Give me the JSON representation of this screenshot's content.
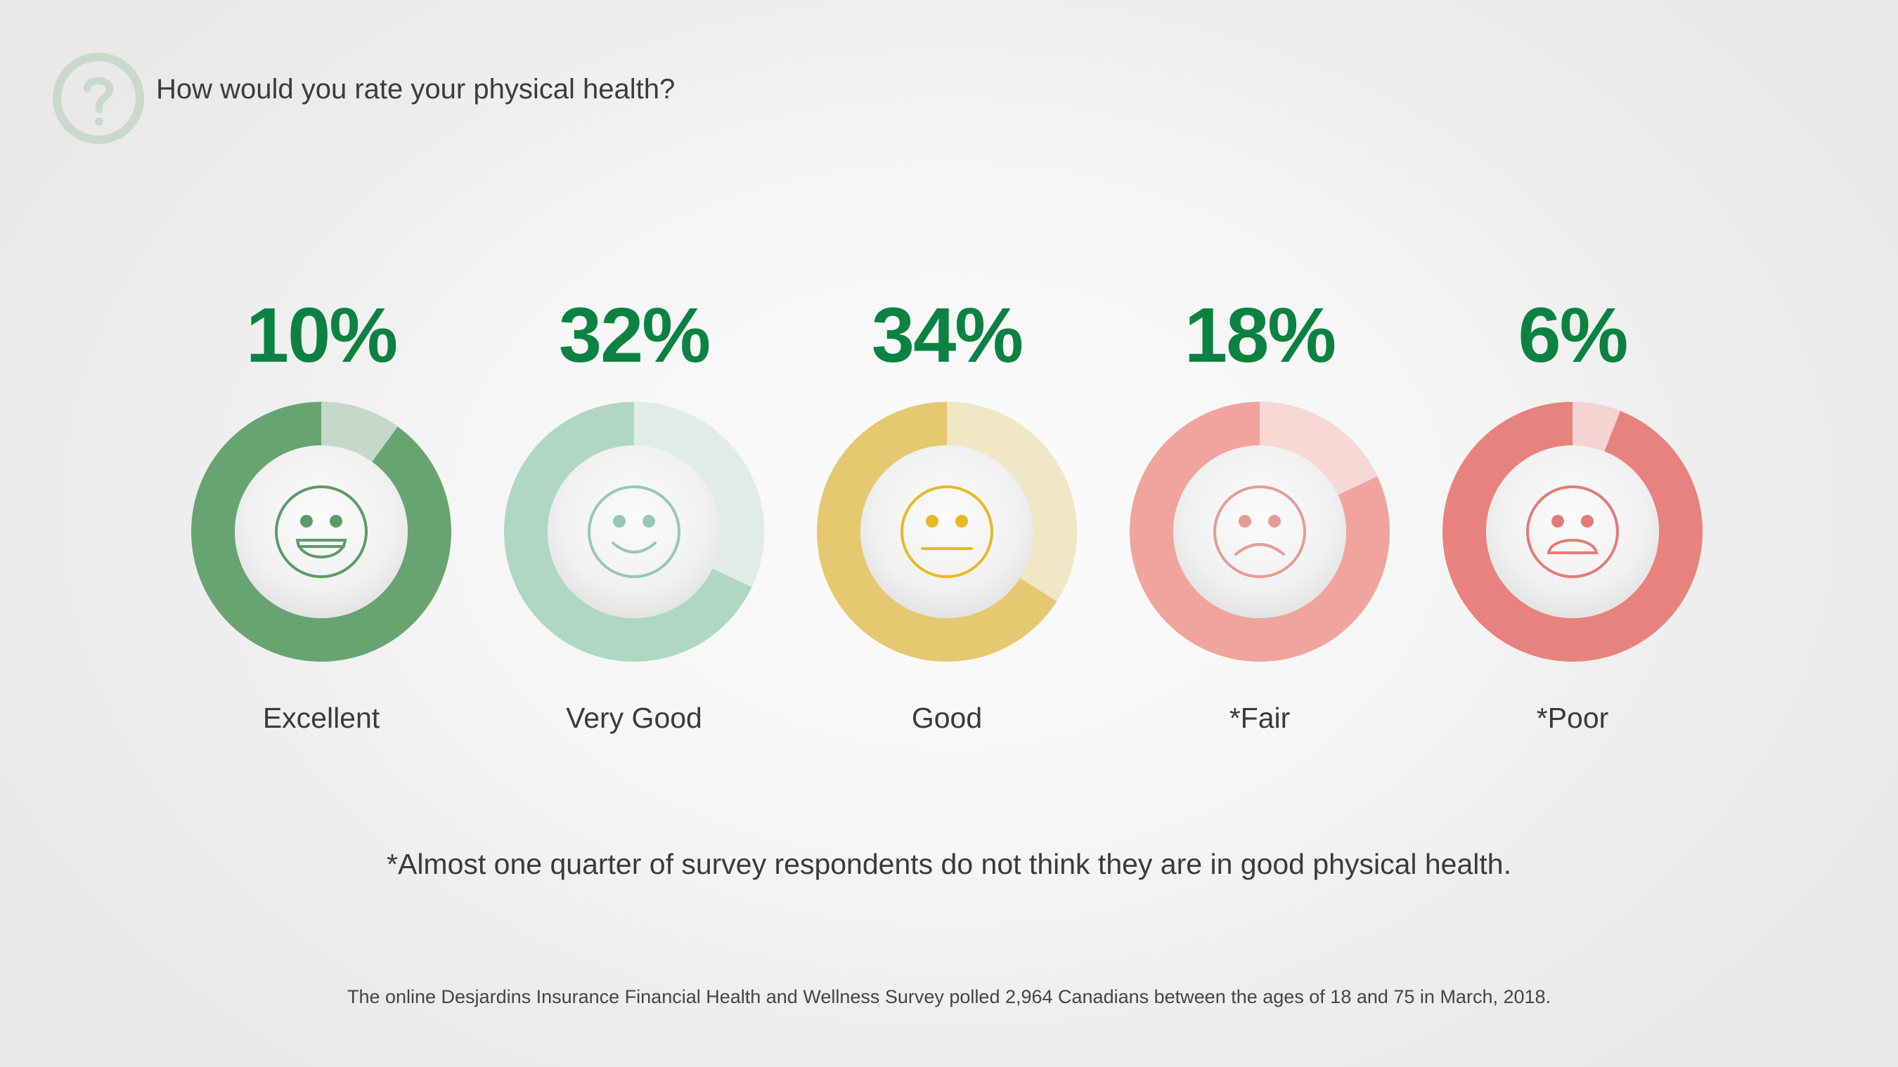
{
  "question": "How would you rate your physical health?",
  "chart_data": {
    "type": "donut",
    "categories": [
      "Excellent",
      "Very Good",
      "Good",
      "*Fair",
      "*Poor"
    ],
    "values": [
      10,
      32,
      34,
      18,
      6
    ],
    "value_labels": [
      "10%",
      "32%",
      "34%",
      "18%",
      "6%"
    ],
    "unit": "%",
    "series_colors": [
      {
        "main": "#68a472",
        "light": "#c6d8c9",
        "face": "#5e9a68"
      },
      {
        "main": "#b0d6c4",
        "light": "#e0ede6",
        "face": "#96c8b3"
      },
      {
        "main": "#e5c870",
        "light": "#f1e6c6",
        "face": "#e8b923"
      },
      {
        "main": "#f0a49d",
        "light": "#f6d8d4",
        "face": "#e59c95"
      },
      {
        "main": "#e8827e",
        "light": "#f5d3d0",
        "face": "#e27b77"
      }
    ],
    "faces": [
      "grin",
      "smile",
      "neutral",
      "frown",
      "sad"
    ]
  },
  "footnote": "*Almost one quarter of survey respondents do not think they are in good physical health.",
  "source": "The online Desjardins Insurance Financial Health and Wellness Survey polled 2,964 Canadians between the ages of 18 and 75 in March, 2018.",
  "colors": {
    "accent": "#0c8242",
    "question_icon": "#c9d9cc"
  }
}
